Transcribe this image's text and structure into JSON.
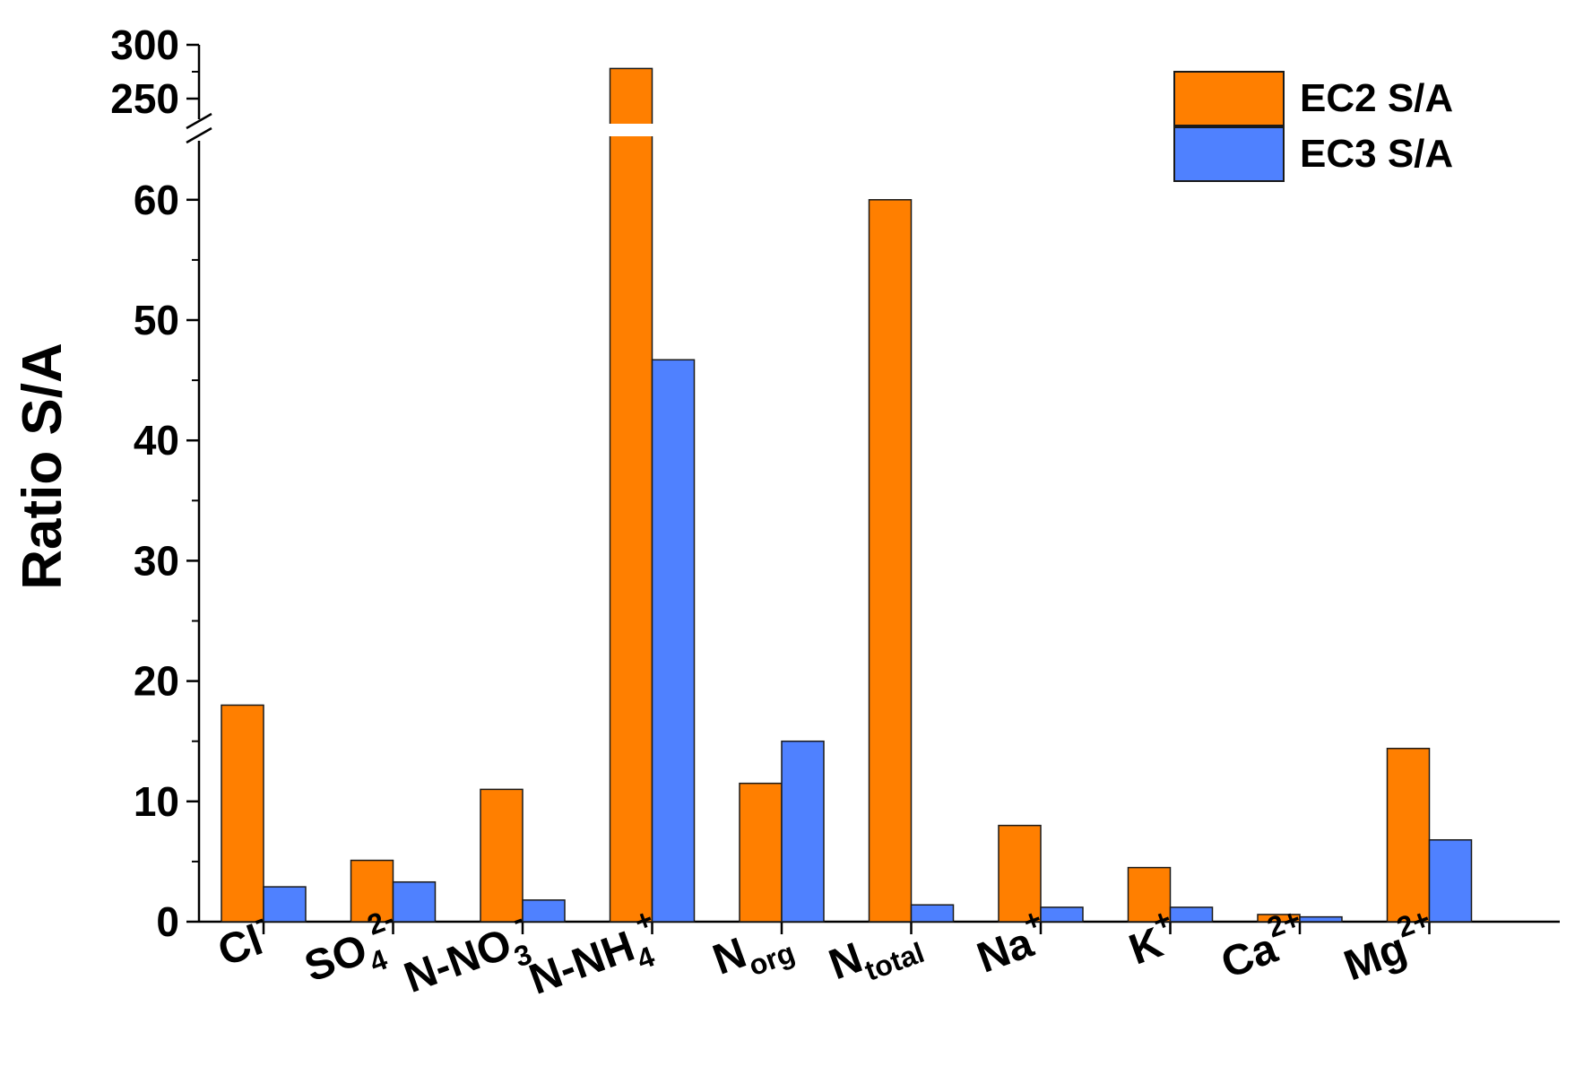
{
  "chart_data": {
    "type": "bar",
    "title": "",
    "xlabel": "",
    "ylabel": "Ratio S/A",
    "ylim_lower": [
      0,
      65
    ],
    "ylim_upper": [
      240,
      300
    ],
    "axis_break": "between 65 and 240",
    "categories": [
      {
        "base": "Cl",
        "sup": "-",
        "sub": ""
      },
      {
        "base": "SO",
        "sup": "2-",
        "sub": "4"
      },
      {
        "base": "N-NO",
        "sup": "-",
        "sub": "3"
      },
      {
        "base": "N-NH",
        "sup": "+",
        "sub": "4"
      },
      {
        "base": "N",
        "sup": "",
        "sub": "org"
      },
      {
        "base": "N",
        "sup": "",
        "sub": "total"
      },
      {
        "base": "Na",
        "sup": "+",
        "sub": ""
      },
      {
        "base": "K",
        "sup": "+",
        "sub": ""
      },
      {
        "base": "Ca",
        "sup": "2+",
        "sub": ""
      },
      {
        "base": "Mg",
        "sup": "2+",
        "sub": ""
      }
    ],
    "series": [
      {
        "name": "EC2 S/A",
        "color": "#ff7f00",
        "values": [
          18,
          5.1,
          11,
          278,
          11.5,
          60,
          8,
          4.5,
          0.6,
          14.4
        ]
      },
      {
        "name": "EC3 S/A",
        "color": "#4f81ff",
        "values": [
          2.9,
          3.3,
          1.8,
          46.7,
          15,
          1.4,
          1.2,
          1.2,
          0.4,
          6.8
        ]
      }
    ],
    "y_ticks_lower": [
      "0",
      "10",
      "20",
      "30",
      "40",
      "50",
      "60"
    ],
    "y_ticks_upper": [
      "250",
      "300"
    ],
    "grid": false,
    "legend_position": "top-right"
  }
}
